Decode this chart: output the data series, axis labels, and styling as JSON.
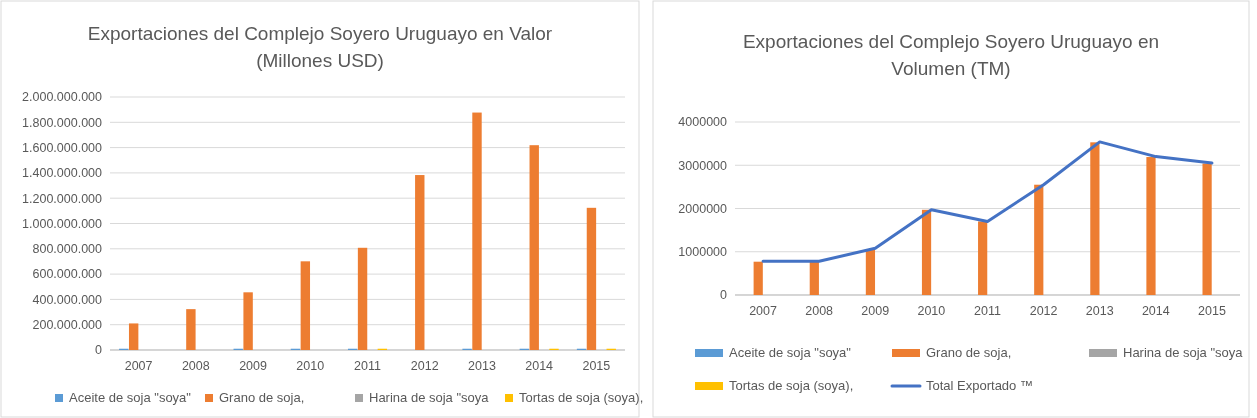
{
  "chart_data": [
    {
      "type": "bar",
      "title": "Exportaciones del Complejo Soyero Uruguayo en Valor (Millones USD)",
      "categories": [
        "2007",
        "2008",
        "2009",
        "2010",
        "2011",
        "2012",
        "2013",
        "2014",
        "2015"
      ],
      "series": [
        {
          "name": "Aceite de soja \"soya\"",
          "color": "#5b9bd5",
          "values": [
            10000000,
            null,
            10000000,
            10000000,
            10000000,
            null,
            10000000,
            10000000,
            10000000
          ]
        },
        {
          "name": "Grano de soja,",
          "color": "#ed7d31",
          "values": [
            210000000,
            323000000,
            456000000,
            701000000,
            808000000,
            1383000000,
            1877000000,
            1619000000,
            1124000000
          ]
        },
        {
          "name": "Harina de soja \"soya",
          "color": "#a5a5a5",
          "values": [
            null,
            null,
            null,
            null,
            null,
            null,
            null,
            null,
            null
          ]
        },
        {
          "name": "Tortas de soja (soya),",
          "color": "#ffc000",
          "values": [
            null,
            null,
            null,
            null,
            10000000,
            null,
            null,
            10000000,
            10000000
          ]
        }
      ],
      "ylim": [
        0,
        2000000000
      ],
      "yticks": [
        {
          "value": 0,
          "label": "0"
        },
        {
          "value": 200000000,
          "label": "200.000.000"
        },
        {
          "value": 400000000,
          "label": "400.000.000"
        },
        {
          "value": 600000000,
          "label": "600.000.000"
        },
        {
          "value": 800000000,
          "label": "800.000.000"
        },
        {
          "value": 1000000000,
          "label": "1.000.000.000"
        },
        {
          "value": 1200000000,
          "label": "1.200.000.000"
        },
        {
          "value": 1400000000,
          "label": "1.400.000.000"
        },
        {
          "value": 1600000000,
          "label": "1.600.000.000"
        },
        {
          "value": 1800000000,
          "label": "1.800.000.000"
        },
        {
          "value": 2000000000,
          "label": "2.000.000.000"
        }
      ],
      "grid": "y",
      "legend": "bottom"
    },
    {
      "type": "bar",
      "title": "Exportaciones del Complejo Soyero Uruguayo en Volumen (TM)",
      "categories": [
        "2007",
        "2008",
        "2009",
        "2010",
        "2011",
        "2012",
        "2013",
        "2014",
        "2015"
      ],
      "series": [
        {
          "name": "Aceite de soja \"soya\"",
          "color": "#5b9bd5",
          "values": [
            null,
            null,
            null,
            null,
            null,
            null,
            null,
            null,
            null
          ]
        },
        {
          "name": "Grano de soja,",
          "color": "#ed7d31",
          "values": [
            770000,
            770000,
            1050000,
            1970000,
            1700000,
            2550000,
            3530000,
            3190000,
            3040000
          ]
        },
        {
          "name": "Harina de soja \"soya",
          "color": "#a5a5a5",
          "values": [
            null,
            null,
            null,
            null,
            null,
            null,
            null,
            null,
            null
          ]
        },
        {
          "name": "Tortas de soja (soya),",
          "color": "#ffc000",
          "values": [
            null,
            null,
            null,
            null,
            null,
            null,
            null,
            null,
            null
          ]
        },
        {
          "name": "Total Exportado ™",
          "type": "line",
          "color": "#4472c4",
          "values": [
            780000,
            780000,
            1080000,
            1970000,
            1700000,
            2550000,
            3540000,
            3200000,
            3050000
          ]
        }
      ],
      "ylim": [
        0,
        4000000
      ],
      "yticks": [
        0,
        1000000,
        2000000,
        3000000,
        4000000
      ],
      "grid": "y",
      "legend": "bottom"
    }
  ]
}
